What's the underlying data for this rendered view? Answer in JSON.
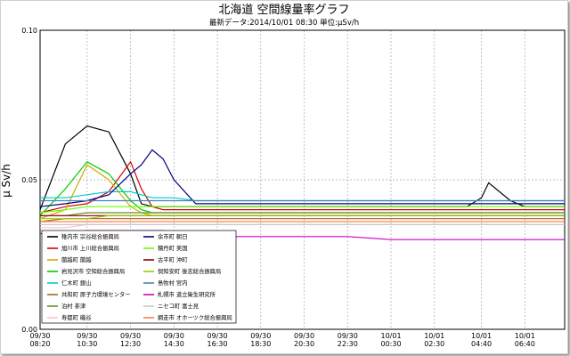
{
  "chart_data": {
    "type": "line",
    "title": "北海道 空間線量率グラフ",
    "subtitle": "最新データ:2014/10/01 08:30  単位:μSv/h",
    "ylabel": "μ Sv/h",
    "xlabel": "",
    "ylim": [
      0,
      0.1
    ],
    "yticks": [
      "0.00",
      "0.05",
      "0.10"
    ],
    "grid": true,
    "legend_position": "bottom-left",
    "x": [
      "09/30 08:20",
      "09/30 09:30",
      "09/30 10:30",
      "09/30 11:30",
      "09/30 12:30",
      "09/30 13:00",
      "09/30 13:30",
      "09/30 14:00",
      "09/30 14:30",
      "09/30 15:30",
      "09/30 16:30",
      "09/30 18:30",
      "09/30 20:30",
      "09/30 22:30",
      "10/01 00:30",
      "10/01 02:30",
      "10/01 04:00",
      "10/01 04:40",
      "10/01 05:00",
      "10/01 06:00",
      "10/01 06:40",
      "10/01 08:30"
    ],
    "xticks": [
      {
        "date": "09/30",
        "time": "08:20"
      },
      {
        "date": "09/30",
        "time": "10:30"
      },
      {
        "date": "09/30",
        "time": "12:30"
      },
      {
        "date": "09/30",
        "time": "14:30"
      },
      {
        "date": "09/30",
        "time": "16:30"
      },
      {
        "date": "09/30",
        "time": "18:30"
      },
      {
        "date": "09/30",
        "time": "20:30"
      },
      {
        "date": "09/30",
        "time": "22:30"
      },
      {
        "date": "10/01",
        "time": "00:30"
      },
      {
        "date": "10/01",
        "time": "02:30"
      },
      {
        "date": "10/01",
        "time": "04:40"
      },
      {
        "date": "10/01",
        "time": "06:40"
      }
    ],
    "series": [
      {
        "name": "稚内市  宗谷総合振興局",
        "color": "#000000",
        "values": [
          0.04,
          0.062,
          0.068,
          0.066,
          0.052,
          0.042,
          0.041,
          0.041,
          0.041,
          0.041,
          0.041,
          0.041,
          0.041,
          0.041,
          0.041,
          0.041,
          0.041,
          0.044,
          0.049,
          0.043,
          0.041,
          0.041
        ]
      },
      {
        "name": "旭川市  上川総合振興局",
        "color": "#d40000",
        "values": [
          0.039,
          0.041,
          0.042,
          0.046,
          0.056,
          0.047,
          0.041,
          0.04,
          0.04,
          0.04,
          0.04,
          0.04,
          0.04,
          0.04,
          0.04,
          0.04,
          0.04,
          0.04,
          0.04,
          0.04,
          0.04,
          0.04
        ]
      },
      {
        "name": "蘭越町  蘭越",
        "color": "#d4aa00",
        "values": [
          0.037,
          0.04,
          0.055,
          0.05,
          0.041,
          0.039,
          0.038,
          0.038,
          0.038,
          0.038,
          0.038,
          0.038,
          0.038,
          0.038,
          0.038,
          0.038,
          0.038,
          0.038,
          0.038,
          0.038,
          0.038,
          0.038
        ]
      },
      {
        "name": "岩見沢市  空知総合振興局",
        "color": "#00cc00",
        "values": [
          0.038,
          0.047,
          0.056,
          0.052,
          0.043,
          0.04,
          0.039,
          0.039,
          0.039,
          0.039,
          0.039,
          0.039,
          0.039,
          0.039,
          0.039,
          0.039,
          0.039,
          0.039,
          0.039,
          0.039,
          0.039,
          0.039
        ]
      },
      {
        "name": "仁木町  銀山",
        "color": "#00cccc",
        "values": [
          0.044,
          0.044,
          0.045,
          0.046,
          0.046,
          0.045,
          0.044,
          0.044,
          0.044,
          0.043,
          0.043,
          0.043,
          0.043,
          0.043,
          0.043,
          0.043,
          0.043,
          0.043,
          0.043,
          0.043,
          0.043,
          0.043
        ]
      },
      {
        "name": "共和町  原子力環境センター",
        "color": "#aa6622",
        "values": [
          0.036,
          0.037,
          0.037,
          0.037,
          0.037,
          0.037,
          0.037,
          0.037,
          0.037,
          0.037,
          0.037,
          0.037,
          0.037,
          0.037,
          0.037,
          0.037,
          0.037,
          0.037,
          0.037,
          0.037,
          0.037,
          0.037
        ]
      },
      {
        "name": "泊村  茶津",
        "color": "#6b8e23",
        "values": [
          0.038,
          0.038,
          0.039,
          0.039,
          0.039,
          0.039,
          0.039,
          0.039,
          0.039,
          0.039,
          0.039,
          0.039,
          0.039,
          0.039,
          0.039,
          0.039,
          0.039,
          0.039,
          0.039,
          0.039,
          0.039,
          0.039
        ]
      },
      {
        "name": "寿都町  磯谷",
        "color": "#ffc0cb",
        "values": [
          0.034,
          0.034,
          0.035,
          0.035,
          0.035,
          0.035,
          0.035,
          0.035,
          0.035,
          0.035,
          0.035,
          0.035,
          0.035,
          0.035,
          0.035,
          0.035,
          0.035,
          0.035,
          0.035,
          0.035,
          0.035,
          0.035
        ]
      },
      {
        "name": "余市町  朝日",
        "color": "#000080",
        "values": [
          0.041,
          0.042,
          0.043,
          0.045,
          0.052,
          0.055,
          0.06,
          0.057,
          0.05,
          0.042,
          0.042,
          0.042,
          0.042,
          0.042,
          0.042,
          0.042,
          0.042,
          0.042,
          0.042,
          0.042,
          0.042,
          0.042
        ]
      },
      {
        "name": "積丹町  美国",
        "color": "#66ff00",
        "values": [
          0.039,
          0.04,
          0.041,
          0.041,
          0.041,
          0.041,
          0.041,
          0.041,
          0.041,
          0.041,
          0.041,
          0.041,
          0.041,
          0.041,
          0.041,
          0.041,
          0.041,
          0.041,
          0.041,
          0.041,
          0.041,
          0.041
        ]
      },
      {
        "name": "古平町  沖町",
        "color": "#8b0000",
        "values": [
          0.038,
          0.038,
          0.038,
          0.038,
          0.038,
          0.038,
          0.038,
          0.038,
          0.038,
          0.038,
          0.038,
          0.038,
          0.038,
          0.038,
          0.038,
          0.038,
          0.038,
          0.038,
          0.038,
          0.038,
          0.038,
          0.038
        ]
      },
      {
        "name": "倶知安町  後志総合振興局",
        "color": "#99cc00",
        "values": [
          0.037,
          0.037,
          0.037,
          0.038,
          0.038,
          0.038,
          0.038,
          0.038,
          0.038,
          0.038,
          0.038,
          0.038,
          0.038,
          0.038,
          0.038,
          0.038,
          0.038,
          0.038,
          0.038,
          0.038,
          0.038,
          0.038
        ]
      },
      {
        "name": "島牧村  宮内",
        "color": "#4682b4",
        "values": [
          0.043,
          0.043,
          0.043,
          0.043,
          0.043,
          0.043,
          0.043,
          0.043,
          0.043,
          0.043,
          0.043,
          0.043,
          0.043,
          0.043,
          0.043,
          0.043,
          0.043,
          0.043,
          0.043,
          0.043,
          0.043,
          0.043
        ]
      },
      {
        "name": "札幌市  道立衛生研究所",
        "color": "#cc00cc",
        "values": [
          0.032,
          0.032,
          0.033,
          0.033,
          0.033,
          0.033,
          0.033,
          0.033,
          0.032,
          0.032,
          0.031,
          0.031,
          0.031,
          0.031,
          0.03,
          0.03,
          0.03,
          0.03,
          0.03,
          0.03,
          0.03,
          0.03
        ]
      },
      {
        "name": "ニセコ町  富士見",
        "color": "#c8c8c8",
        "values": [
          0.035,
          0.035,
          0.035,
          0.035,
          0.035,
          0.035,
          0.035,
          0.035,
          0.035,
          0.035,
          0.035,
          0.035,
          0.035,
          0.035,
          0.035,
          0.035,
          0.035,
          0.035,
          0.035,
          0.035,
          0.035,
          0.035
        ]
      },
      {
        "name": "網走市  オホーツク総合振興局",
        "color": "#ff7f50",
        "values": [
          0.036,
          0.036,
          0.036,
          0.036,
          0.036,
          0.036,
          0.036,
          0.036,
          0.036,
          0.036,
          0.036,
          0.036,
          0.036,
          0.036,
          0.036,
          0.036,
          0.036,
          0.036,
          0.036,
          0.036,
          0.036,
          0.036
        ]
      }
    ]
  }
}
